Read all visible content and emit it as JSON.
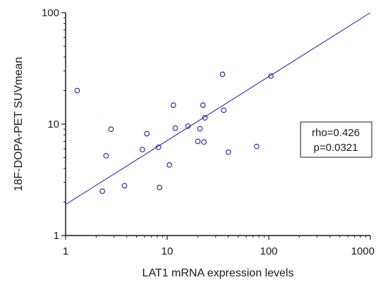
{
  "chart_data": {
    "type": "scatter",
    "title": "",
    "xlabel": "LAT1 mRNA expression levels",
    "ylabel": "18F-DOPA-PET SUVmean",
    "x_scale": "log",
    "y_scale": "log",
    "xlim": [
      1,
      1000
    ],
    "ylim": [
      1,
      100
    ],
    "x_ticks": [
      "1",
      "10",
      "100",
      "1000"
    ],
    "y_ticks": [
      "1",
      "10",
      "100"
    ],
    "grid": false,
    "marker": "open-circle",
    "point_color": "#1f1f9e",
    "line_color": "#1f1f9e",
    "points": [
      {
        "x": 1.3,
        "y": 20.0
      },
      {
        "x": 2.3,
        "y": 2.5
      },
      {
        "x": 2.5,
        "y": 5.2
      },
      {
        "x": 2.8,
        "y": 9.0
      },
      {
        "x": 3.8,
        "y": 2.8
      },
      {
        "x": 5.7,
        "y": 5.9
      },
      {
        "x": 6.3,
        "y": 8.2
      },
      {
        "x": 8.2,
        "y": 6.2
      },
      {
        "x": 8.4,
        "y": 2.7
      },
      {
        "x": 10.5,
        "y": 4.3
      },
      {
        "x": 11.5,
        "y": 14.8
      },
      {
        "x": 12.0,
        "y": 9.2
      },
      {
        "x": 16.0,
        "y": 9.6
      },
      {
        "x": 20.0,
        "y": 7.0
      },
      {
        "x": 21.0,
        "y": 9.1
      },
      {
        "x": 22.5,
        "y": 14.8
      },
      {
        "x": 23.0,
        "y": 6.9
      },
      {
        "x": 23.5,
        "y": 11.4
      },
      {
        "x": 35.0,
        "y": 28.0
      },
      {
        "x": 36.0,
        "y": 13.3
      },
      {
        "x": 40.0,
        "y": 5.6
      },
      {
        "x": 76.0,
        "y": 6.3
      },
      {
        "x": 105.0,
        "y": 27.0
      }
    ],
    "regression_line": {
      "x": [
        1,
        1000
      ],
      "y": [
        1.9,
        100
      ]
    },
    "annotation": {
      "lines": [
        "rho=0.426",
        "p=0.0321"
      ],
      "placement": "right-center"
    }
  }
}
